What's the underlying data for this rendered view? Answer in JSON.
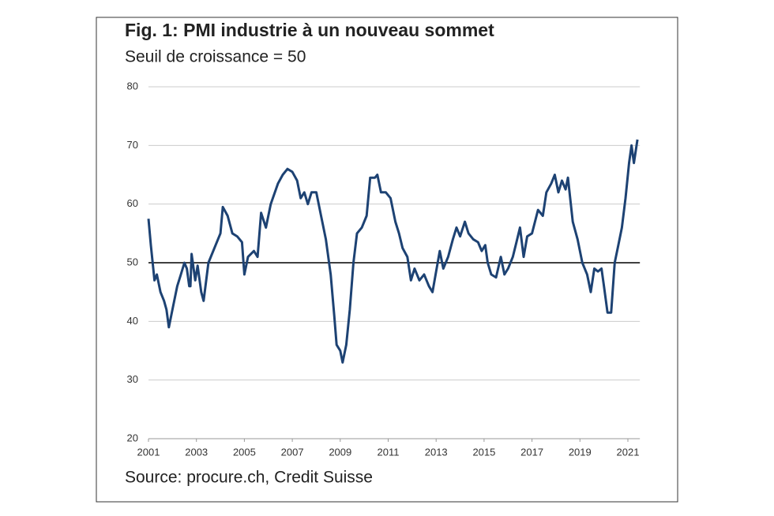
{
  "chart_data": {
    "type": "line",
    "title": "Fig. 1: PMI industrie à un nouveau sommet",
    "subtitle": "Seuil de croissance = 50",
    "source": "Source: procure.ch, Credit Suisse",
    "x": [
      2001.0,
      2001.1,
      2001.25,
      2001.35,
      2001.5,
      2001.65,
      2001.75,
      2001.85,
      2002.0,
      2002.2,
      2002.35,
      2002.5,
      2002.6,
      2002.7,
      2002.75,
      2002.8,
      2002.95,
      2003.05,
      2003.2,
      2003.3,
      2003.5,
      2003.8,
      2004.0,
      2004.1,
      2004.3,
      2004.5,
      2004.7,
      2004.9,
      2005.0,
      2005.15,
      2005.4,
      2005.55,
      2005.7,
      2005.9,
      2006.1,
      2006.4,
      2006.6,
      2006.8,
      2007.0,
      2007.2,
      2007.35,
      2007.5,
      2007.65,
      2007.8,
      2008.0,
      2008.2,
      2008.4,
      2008.6,
      2008.75,
      2008.85,
      2009.0,
      2009.1,
      2009.25,
      2009.4,
      2009.55,
      2009.7,
      2009.9,
      2010.1,
      2010.25,
      2010.45,
      2010.55,
      2010.7,
      2010.9,
      2011.1,
      2011.3,
      2011.45,
      2011.6,
      2011.8,
      2011.95,
      2012.1,
      2012.3,
      2012.5,
      2012.7,
      2012.85,
      2013.0,
      2013.15,
      2013.3,
      2013.5,
      2013.7,
      2013.85,
      2014.0,
      2014.2,
      2014.35,
      2014.55,
      2014.75,
      2014.9,
      2015.05,
      2015.15,
      2015.3,
      2015.5,
      2015.7,
      2015.85,
      2016.0,
      2016.2,
      2016.35,
      2016.5,
      2016.65,
      2016.8,
      2017.0,
      2017.25,
      2017.45,
      2017.6,
      2017.8,
      2017.95,
      2018.1,
      2018.25,
      2018.4,
      2018.5,
      2018.7,
      2018.9,
      2019.1,
      2019.3,
      2019.45,
      2019.6,
      2019.75,
      2019.9,
      2020.0,
      2020.15,
      2020.3,
      2020.45,
      2020.6,
      2020.75,
      2020.9,
      2021.05,
      2021.15,
      2021.25,
      2021.4
    ],
    "series": [
      {
        "name": "PMI industrie",
        "color": "#1d4273",
        "values": [
          57.5,
          53,
          47,
          48,
          45,
          43.5,
          42,
          39,
          42,
          46,
          48,
          50,
          49,
          46,
          46,
          51.5,
          47,
          49.5,
          45,
          43.5,
          50,
          53,
          55,
          59.5,
          58,
          55,
          54.5,
          53.5,
          48,
          51,
          52,
          51,
          58.5,
          56,
          60,
          63.5,
          65,
          66,
          65.5,
          64,
          61,
          62,
          60,
          62,
          62,
          58,
          54,
          48,
          41,
          36,
          35,
          33,
          36,
          42,
          50,
          55,
          56,
          58,
          64.5,
          64.5,
          65,
          62,
          62,
          61,
          57,
          55,
          52.5,
          51,
          47,
          49,
          47,
          48,
          46,
          45,
          48.5,
          52,
          49,
          51,
          54,
          56,
          54.5,
          57,
          55,
          54,
          53.5,
          52,
          53,
          50,
          48,
          47.5,
          51,
          48,
          49,
          51,
          53.5,
          56,
          51,
          54.5,
          55,
          59,
          58,
          62,
          63.5,
          65,
          62,
          64,
          62.5,
          64.5,
          57,
          54,
          50,
          48,
          45,
          49,
          48.5,
          49,
          46,
          41.5,
          41.5,
          50,
          53,
          56,
          61,
          67,
          70,
          67,
          71
        ]
      }
    ],
    "reference_line": 50,
    "xlim": [
      2001,
      2021.5
    ],
    "xticks": [
      2001,
      2003,
      2005,
      2007,
      2009,
      2011,
      2013,
      2015,
      2017,
      2019,
      2021
    ],
    "ylim": [
      20,
      80
    ],
    "yticks": [
      20,
      30,
      40,
      50,
      60,
      70,
      80
    ],
    "grid": true
  }
}
